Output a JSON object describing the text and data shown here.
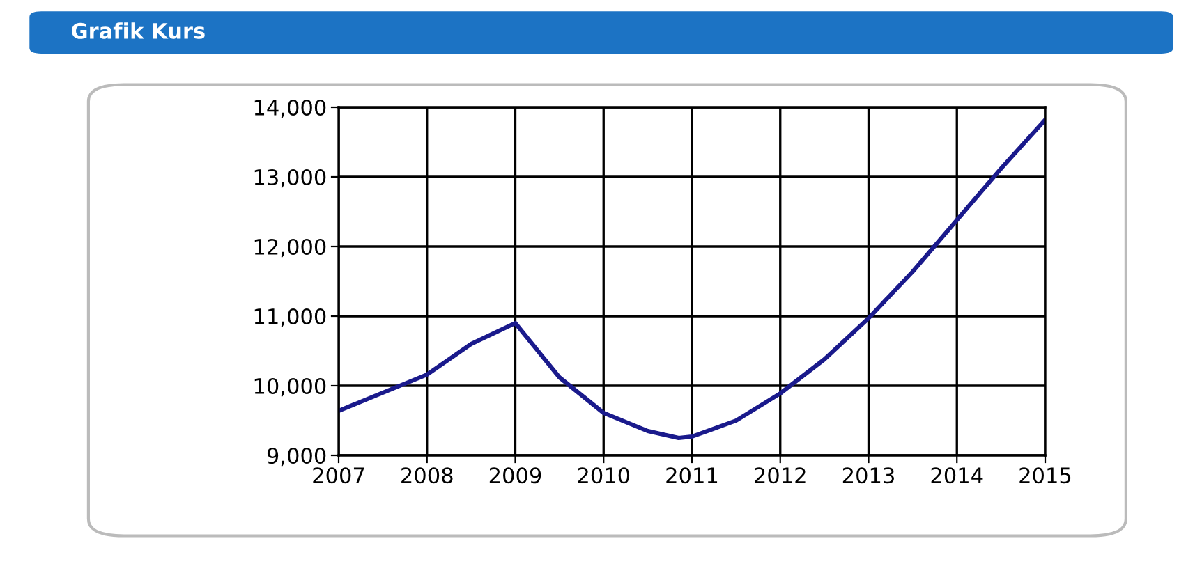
{
  "chart_data": {
    "type": "line",
    "title": "Grafik Kurs",
    "x": [
      2007,
      2007.5,
      2008,
      2008.5,
      2009,
      2009.5,
      2010,
      2010.5,
      2010.85,
      2011,
      2011.5,
      2012,
      2012.5,
      2013,
      2013.5,
      2014,
      2014.5,
      2015
    ],
    "series": [
      {
        "color": "#1a1a8c",
        "values": [
          9640,
          9900,
          10160,
          10600,
          10900,
          10120,
          9610,
          9350,
          9250,
          9270,
          9500,
          9890,
          10380,
          10970,
          11640,
          12380,
          13120,
          13820
        ]
      }
    ],
    "xlim": [
      2007,
      2015
    ],
    "xticks": [
      2007,
      2008,
      2009,
      2010,
      2011,
      2012,
      2013,
      2014,
      2015
    ],
    "ylim": [
      9000,
      14000
    ],
    "yticks": [
      {
        "value": 9000,
        "label": "9,000"
      },
      {
        "value": 10000,
        "label": "10,000"
      },
      {
        "value": 11000,
        "label": "11,000"
      },
      {
        "value": 12000,
        "label": "12,000"
      },
      {
        "value": 13000,
        "label": "13,000"
      },
      {
        "value": 14000,
        "label": "14,000"
      }
    ],
    "grid": true,
    "legend": false,
    "marker": "none",
    "line_style": "solid"
  }
}
